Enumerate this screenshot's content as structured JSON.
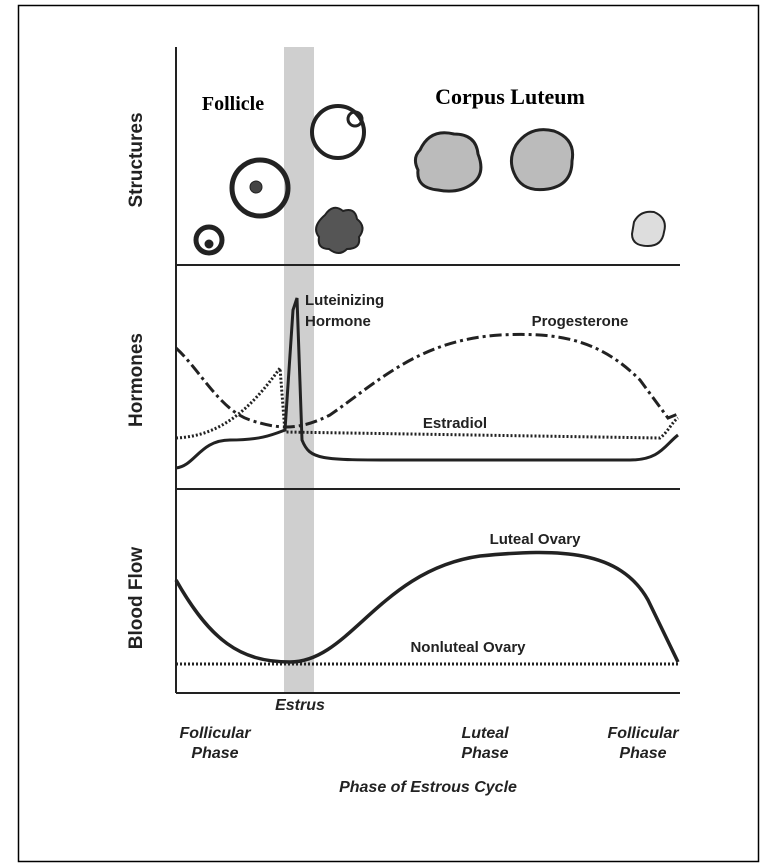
{
  "diagram": {
    "structures_label": "Structures",
    "hormones_label": "Hormones",
    "blood_flow_label": "Blood Flow",
    "follicle": "Follicle",
    "corpus_luteum": "Corpus Luteum",
    "luteinizing_hormone": [
      "Luteinizing",
      "Hormone"
    ],
    "progesterone": "Progesterone",
    "estradiol": "Estradiol",
    "luteal_ovary": "Luteal Ovary",
    "nonluteal_ovary": "Nonluteal Ovary",
    "estrus": "Estrus",
    "phases": [
      [
        "Follicular",
        "Phase"
      ],
      [
        "Luteal",
        "Phase"
      ],
      [
        "Follicular",
        "Phase"
      ]
    ],
    "x_axis_title": "Phase of Estrous Cycle"
  }
}
